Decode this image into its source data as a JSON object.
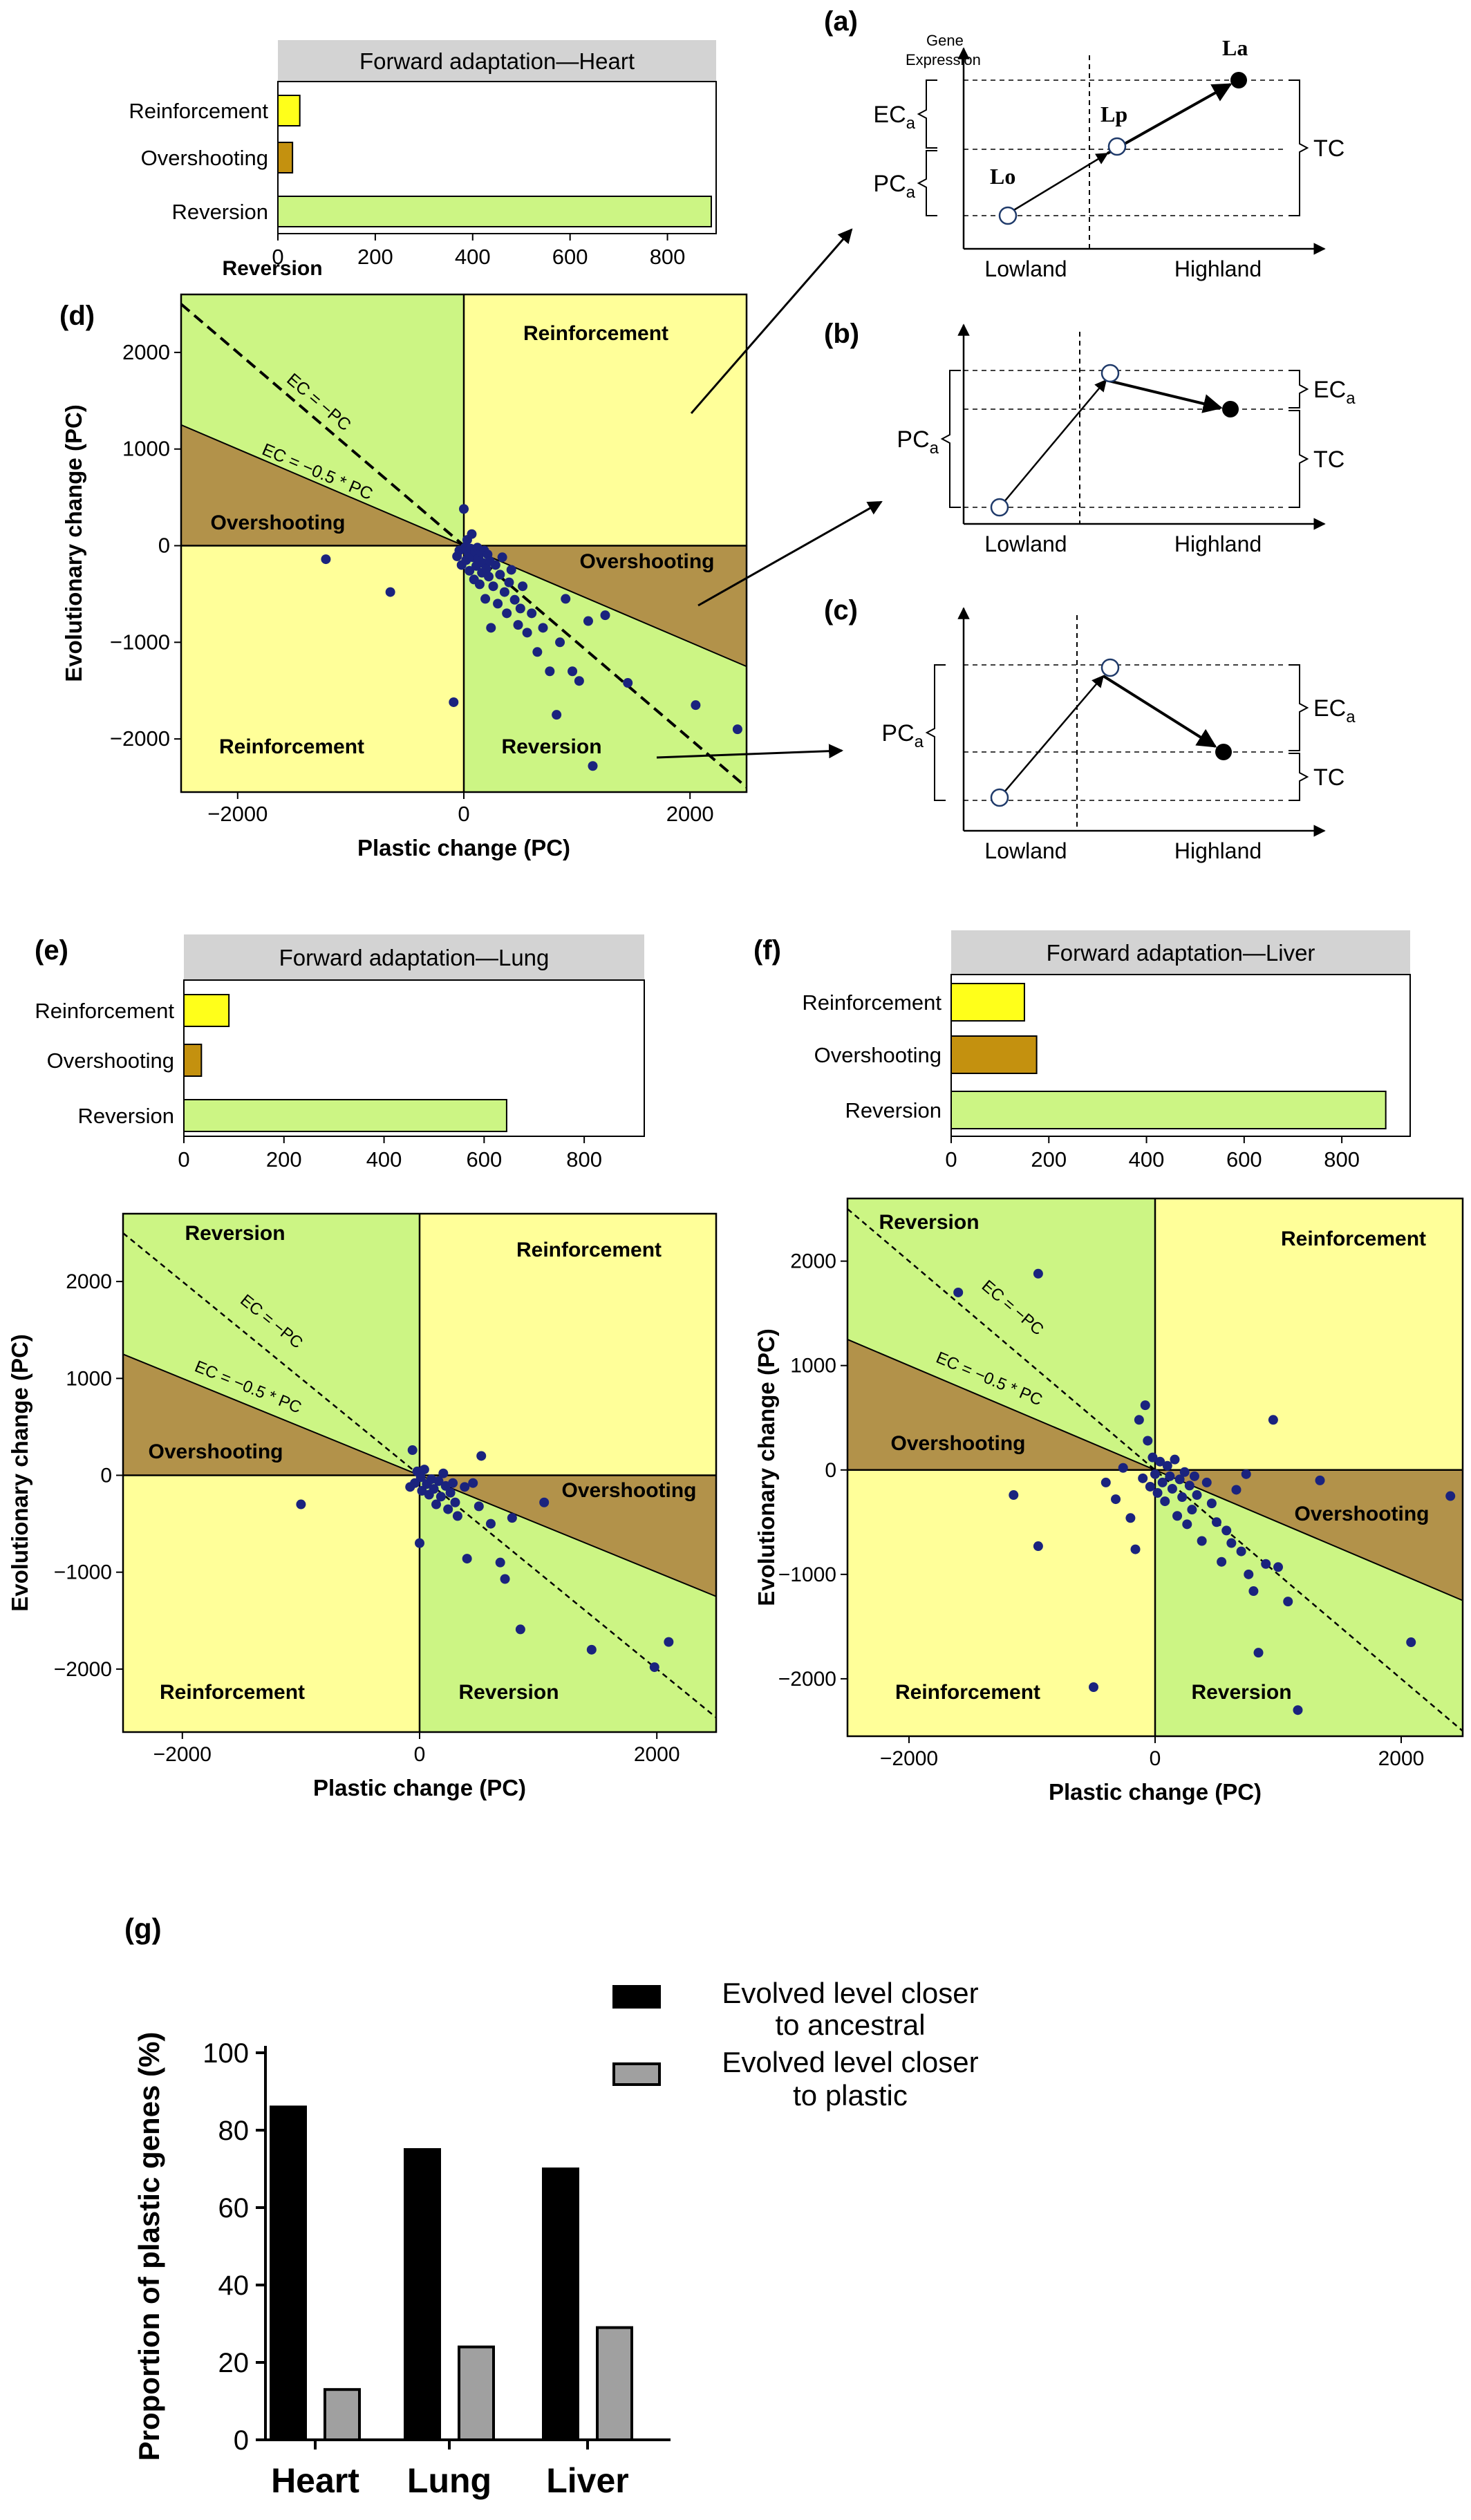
{
  "colors": {
    "yellow": "#FFFF99",
    "green": "#CCF584",
    "brown": "#B2924A",
    "bar_yellow": "#FFFF1A",
    "bar_brown": "#C4910F",
    "bar_green": "#CCF584",
    "title_bg": "#D3D3D3",
    "dot": "#1A237E",
    "black_bar": "#000000",
    "gray_bar": "#A0A0A0"
  },
  "panel_labels": {
    "a": "(a)",
    "b": "(b)",
    "c": "(c)",
    "d": "(d)",
    "e": "(e)",
    "f": "(f)",
    "g": "(g)"
  },
  "schematic": {
    "gene_expression": [
      "Gene",
      "Expression"
    ],
    "lowland": "Lowland",
    "highland": "Highland",
    "lo": "Lo",
    "lp": "Lp",
    "la": "La",
    "ec": "EC",
    "pc": "PC",
    "sub_a": "a",
    "tc": "TC"
  },
  "scatter_common": {
    "xlabel": "Plastic change (PC)",
    "ylabel": "Evolutionary change (PC)",
    "line_ec_pc": "EC = −PC",
    "line_ec_half": "EC = −0.5 * PC",
    "regions": {
      "reversion": "Reversion",
      "reinforcement": "Reinforcement",
      "overshooting": "Overshooting"
    }
  },
  "chart_data": [
    {
      "type": "bar",
      "panel": "d",
      "title": "Forward adaptation—Heart",
      "categories": [
        "Reinforcement",
        "Overshooting",
        "Reversion"
      ],
      "values": [
        45,
        30,
        890
      ],
      "xlim": [
        0,
        900
      ],
      "xticks": [
        0,
        200,
        400,
        600,
        800
      ]
    },
    {
      "type": "scatter",
      "panel": "d",
      "xlabel": "Plastic change (PC)",
      "ylabel": "Evolutionary change (PC)",
      "xlim": [
        -2500,
        2500
      ],
      "ylim": [
        -2550,
        2600
      ],
      "xticks": [
        -2000,
        0,
        2000
      ],
      "yticks": [
        -2000,
        -1000,
        0,
        1000,
        2000
      ],
      "lines": [
        "EC = −PC",
        "EC = −0.5 * PC"
      ],
      "points": [
        [
          -1220,
          -140
        ],
        [
          -650,
          -480
        ],
        [
          -90,
          -1620
        ],
        [
          -60,
          -110
        ],
        [
          -40,
          -50
        ],
        [
          -20,
          -200
        ],
        [
          0,
          380
        ],
        [
          10,
          -20
        ],
        [
          20,
          -150
        ],
        [
          30,
          60
        ],
        [
          40,
          -80
        ],
        [
          50,
          -260
        ],
        [
          60,
          -30
        ],
        [
          70,
          120
        ],
        [
          80,
          -120
        ],
        [
          90,
          -350
        ],
        [
          100,
          -60
        ],
        [
          110,
          -210
        ],
        [
          120,
          -20
        ],
        [
          130,
          -130
        ],
        [
          140,
          -400
        ],
        [
          150,
          -70
        ],
        [
          160,
          -280
        ],
        [
          170,
          -180
        ],
        [
          180,
          -50
        ],
        [
          190,
          -550
        ],
        [
          200,
          -240
        ],
        [
          210,
          -90
        ],
        [
          220,
          -320
        ],
        [
          230,
          -160
        ],
        [
          240,
          -850
        ],
        [
          260,
          -420
        ],
        [
          280,
          -200
        ],
        [
          300,
          -600
        ],
        [
          320,
          -300
        ],
        [
          340,
          -120
        ],
        [
          360,
          -480
        ],
        [
          380,
          -700
        ],
        [
          400,
          -380
        ],
        [
          420,
          -250
        ],
        [
          450,
          -560
        ],
        [
          480,
          -820
        ],
        [
          500,
          -650
        ],
        [
          520,
          -420
        ],
        [
          560,
          -900
        ],
        [
          600,
          -700
        ],
        [
          650,
          -1100
        ],
        [
          700,
          -850
        ],
        [
          760,
          -1300
        ],
        [
          820,
          -1750
        ],
        [
          850,
          -1000
        ],
        [
          900,
          -550
        ],
        [
          960,
          -1300
        ],
        [
          1020,
          -1400
        ],
        [
          1100,
          -780
        ],
        [
          1140,
          -2280
        ],
        [
          1250,
          -720
        ],
        [
          1450,
          -1420
        ],
        [
          2050,
          -1650
        ],
        [
          2420,
          -1900
        ]
      ]
    },
    {
      "type": "bar",
      "panel": "e",
      "title": "Forward adaptation—Lung",
      "categories": [
        "Reinforcement",
        "Overshooting",
        "Reversion"
      ],
      "values": [
        90,
        35,
        645
      ],
      "xlim": [
        0,
        920
      ],
      "xticks": [
        0,
        200,
        400,
        600,
        800
      ]
    },
    {
      "type": "scatter",
      "panel": "e",
      "xlabel": "Plastic change (PC)",
      "ylabel": "Evolutionary change (PC)",
      "xlim": [
        -2500,
        2500
      ],
      "ylim": [
        -2650,
        2700
      ],
      "xticks": [
        -2000,
        0,
        2000
      ],
      "yticks": [
        -2000,
        -1000,
        0,
        1000,
        2000
      ],
      "lines": [
        "EC = −PC",
        "EC = −0.5 * PC"
      ],
      "points": [
        [
          -1000,
          -300
        ],
        [
          -80,
          -120
        ],
        [
          -60,
          260
        ],
        [
          -40,
          -80
        ],
        [
          -20,
          40
        ],
        [
          0,
          -700
        ],
        [
          10,
          -20
        ],
        [
          20,
          -160
        ],
        [
          40,
          60
        ],
        [
          60,
          -90
        ],
        [
          80,
          -200
        ],
        [
          100,
          -40
        ],
        [
          120,
          -140
        ],
        [
          140,
          -300
        ],
        [
          160,
          -60
        ],
        [
          180,
          -220
        ],
        [
          200,
          20
        ],
        [
          220,
          -110
        ],
        [
          240,
          -350
        ],
        [
          260,
          -180
        ],
        [
          280,
          -80
        ],
        [
          300,
          -280
        ],
        [
          320,
          -420
        ],
        [
          380,
          -120
        ],
        [
          400,
          -860
        ],
        [
          450,
          -80
        ],
        [
          500,
          -320
        ],
        [
          520,
          200
        ],
        [
          600,
          -500
        ],
        [
          680,
          -900
        ],
        [
          720,
          -1070
        ],
        [
          780,
          -440
        ],
        [
          850,
          -1590
        ],
        [
          1050,
          -280
        ],
        [
          1450,
          -1800
        ],
        [
          1980,
          -1980
        ],
        [
          2100,
          -1720
        ]
      ]
    },
    {
      "type": "bar",
      "panel": "f",
      "title": "Forward adaptation—Liver",
      "categories": [
        "Reinforcement",
        "Overshooting",
        "Reversion"
      ],
      "values": [
        150,
        175,
        890
      ],
      "xlim": [
        0,
        940
      ],
      "xticks": [
        0,
        200,
        400,
        600,
        800
      ]
    },
    {
      "type": "scatter",
      "panel": "f",
      "xlabel": "Plastic change (PC)",
      "ylabel": "Evolutionary change (PC)",
      "xlim": [
        -2500,
        2500
      ],
      "ylim": [
        -2550,
        2600
      ],
      "xticks": [
        -2000,
        0,
        2000
      ],
      "yticks": [
        -2000,
        -1000,
        0,
        1000,
        2000
      ],
      "lines": [
        "EC = −PC",
        "EC = −0.5 * PC"
      ],
      "points": [
        [
          -1600,
          1700
        ],
        [
          -950,
          1880
        ],
        [
          -1150,
          -240
        ],
        [
          -950,
          -730
        ],
        [
          -500,
          -2080
        ],
        [
          -400,
          -120
        ],
        [
          -320,
          -280
        ],
        [
          -260,
          20
        ],
        [
          -200,
          -460
        ],
        [
          -160,
          -760
        ],
        [
          -130,
          480
        ],
        [
          -100,
          -80
        ],
        [
          -80,
          620
        ],
        [
          -60,
          280
        ],
        [
          -40,
          -160
        ],
        [
          -20,
          120
        ],
        [
          0,
          -40
        ],
        [
          20,
          -220
        ],
        [
          40,
          80
        ],
        [
          60,
          -120
        ],
        [
          80,
          -300
        ],
        [
          100,
          40
        ],
        [
          120,
          -60
        ],
        [
          140,
          -180
        ],
        [
          160,
          100
        ],
        [
          180,
          -440
        ],
        [
          200,
          -90
        ],
        [
          220,
          -260
        ],
        [
          240,
          -20
        ],
        [
          260,
          -520
        ],
        [
          280,
          -150
        ],
        [
          300,
          -380
        ],
        [
          320,
          -60
        ],
        [
          340,
          -240
        ],
        [
          380,
          -680
        ],
        [
          420,
          -120
        ],
        [
          460,
          -320
        ],
        [
          500,
          -500
        ],
        [
          540,
          -880
        ],
        [
          580,
          -580
        ],
        [
          620,
          -700
        ],
        [
          660,
          -190
        ],
        [
          700,
          -780
        ],
        [
          740,
          -40
        ],
        [
          760,
          -1000
        ],
        [
          800,
          -1160
        ],
        [
          840,
          -1750
        ],
        [
          900,
          -900
        ],
        [
          960,
          480
        ],
        [
          1000,
          -930
        ],
        [
          1080,
          -1260
        ],
        [
          1160,
          -2300
        ],
        [
          1340,
          -100
        ],
        [
          2080,
          -1650
        ],
        [
          2400,
          -250
        ]
      ]
    },
    {
      "type": "bar",
      "panel": "g",
      "ylabel": "Proportion of plastic genes (%)",
      "categories": [
        "Heart",
        "Lung",
        "Liver"
      ],
      "ylim": [
        0,
        100
      ],
      "yticks": [
        0,
        20,
        40,
        60,
        80,
        100
      ],
      "series": [
        {
          "name": "Evolved level closer to ancestral",
          "values": [
            86,
            75,
            70
          ]
        },
        {
          "name": "Evolved level closer to plastic",
          "values": [
            13,
            24,
            29
          ]
        }
      ],
      "legend_position": "top-right"
    }
  ]
}
